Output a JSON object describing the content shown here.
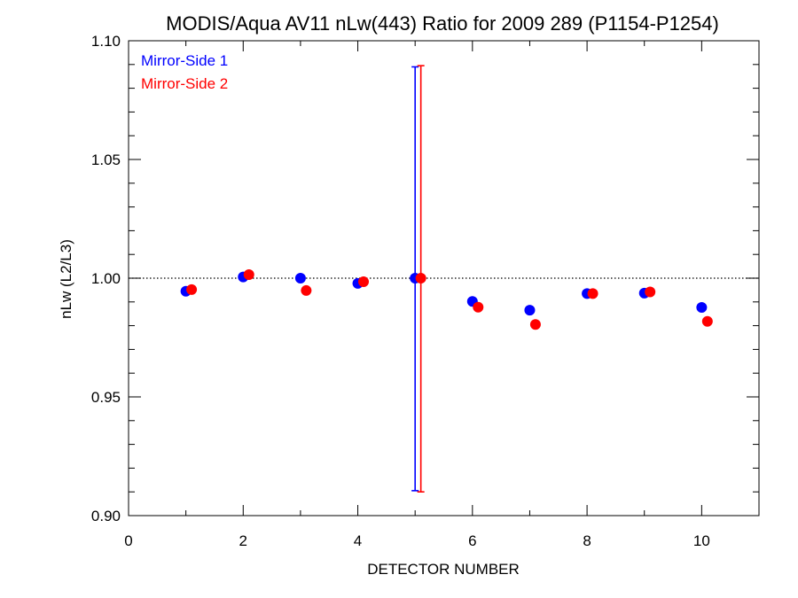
{
  "chart_data": {
    "type": "scatter",
    "title": "MODIS/Aqua AV11 nLw(443) Ratio for 2009 289 (P1154-P1254)",
    "xlabel": "DETECTOR NUMBER",
    "ylabel": "nLw (L2/L3)",
    "xlim": [
      0,
      11
    ],
    "ylim": [
      0.9,
      1.1
    ],
    "xticks": [
      0,
      2,
      4,
      6,
      8,
      10
    ],
    "xtick_labels": [
      "0",
      "2",
      "4",
      "6",
      "8",
      "10"
    ],
    "yticks": [
      0.9,
      0.95,
      1.0,
      1.05,
      1.1
    ],
    "ytick_labels": [
      "0.90",
      "0.95",
      "1.00",
      "1.05",
      "1.10"
    ],
    "reference_line": 1.0,
    "grid": false,
    "legend_position": "top-left",
    "series": [
      {
        "name": "Mirror-Side 1",
        "color": "#0000ff",
        "x": [
          1,
          2,
          3,
          4,
          5,
          6,
          7,
          8,
          9,
          10
        ],
        "y": [
          0.9945,
          1.0005,
          1.0,
          0.9978,
          1.0,
          0.9902,
          0.9865,
          0.9935,
          0.9937,
          0.9877
        ],
        "error_bar": {
          "x": 5,
          "low": 0.9105,
          "high": 1.089
        }
      },
      {
        "name": "Mirror-Side 2",
        "color": "#ff0000",
        "x": [
          1.1,
          2.1,
          3.1,
          4.1,
          5.1,
          6.1,
          7.1,
          8.1,
          9.1,
          10.1
        ],
        "y": [
          0.9952,
          1.0015,
          0.9948,
          0.9985,
          1.0,
          0.9878,
          0.9805,
          0.9935,
          0.9942,
          0.9818
        ],
        "error_bar": {
          "x": 5.1,
          "low": 0.91,
          "high": 1.0895
        }
      }
    ]
  }
}
